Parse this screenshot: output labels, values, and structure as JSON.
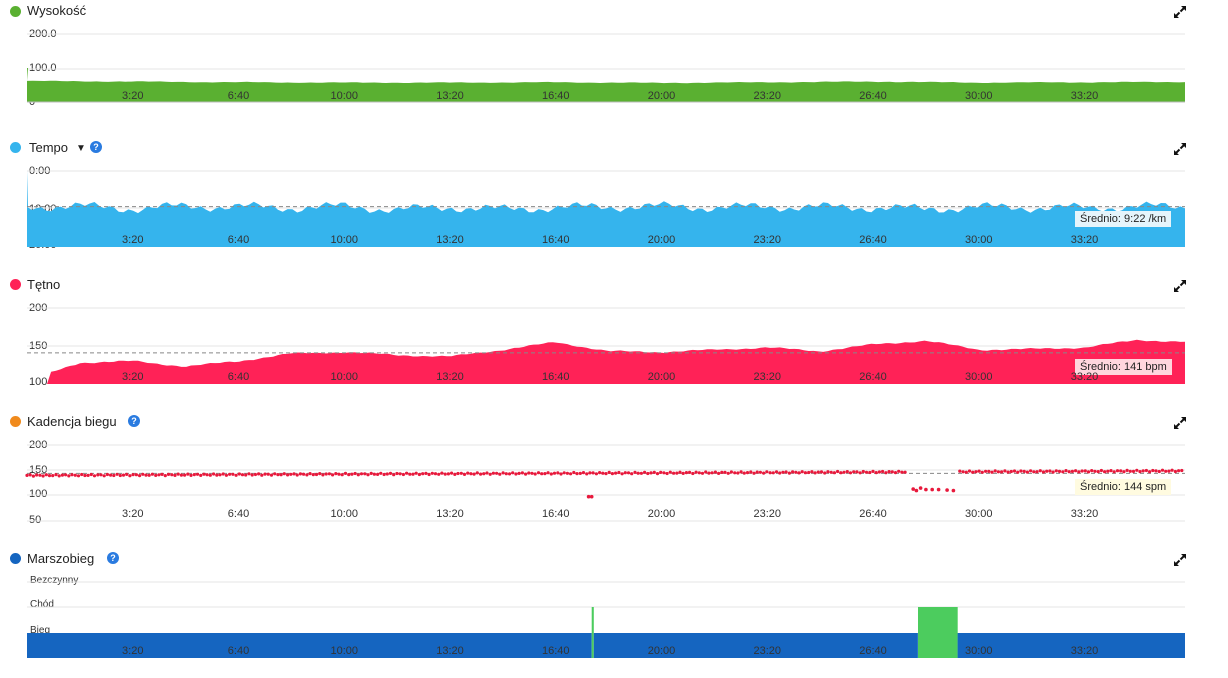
{
  "x_ticks": [
    "3:20",
    "6:40",
    "10:00",
    "13:20",
    "16:40",
    "20:00",
    "23:20",
    "26:40",
    "30:00",
    "33:20"
  ],
  "panels": {
    "wysokosc": {
      "title": "Wysokość",
      "color": "#5ab031",
      "y_ticks": [
        "200.0",
        "100.0",
        "0"
      ],
      "ylim": [
        0,
        200
      ],
      "icon": "expand-icon"
    },
    "tempo": {
      "title": "Tempo",
      "has_dropdown": true,
      "has_help": true,
      "color": "#35b4ed",
      "y_ticks": [
        "0:00",
        "10:00",
        "20:00"
      ],
      "average_label": "Średnio: 9:22 /km",
      "icon": "expand-icon"
    },
    "tetno": {
      "title": "Tętno",
      "color": "#ff2257",
      "y_ticks": [
        "200",
        "150",
        "100"
      ],
      "ylim": [
        100,
        200
      ],
      "average_label": "Średnio: 141 bpm",
      "icon": "expand-icon"
    },
    "kadencja": {
      "title": "Kadencja biegu",
      "has_help": true,
      "dot_color": "#f08a1c",
      "point_color": "#e8193c",
      "y_ticks": [
        "200",
        "150",
        "100",
        "50"
      ],
      "ylim": [
        50,
        200
      ],
      "average_label": "Średnio: 144 spm",
      "icon": "expand-icon"
    },
    "marszobieg": {
      "title": "Marszobieg",
      "has_help": true,
      "dot_color": "#1565c0",
      "run_color": "#1565c0",
      "walk_color": "#4ccc5e",
      "y_ticks": [
        "Bezczynny",
        "Chód",
        "Bieg"
      ],
      "icon": "expand-icon"
    }
  },
  "chart_data": [
    {
      "type": "area",
      "title": "Wysokość",
      "ylim": [
        0,
        200
      ],
      "x_unit": "seconds",
      "x": [
        0,
        200,
        400,
        600,
        800,
        1000,
        1200,
        1400,
        1600,
        1800,
        2000,
        2200,
        2400
      ],
      "values": [
        62,
        60,
        58,
        57,
        57,
        58,
        56,
        58,
        60,
        57,
        58,
        59,
        62
      ]
    },
    {
      "type": "area",
      "title": "Tempo",
      "ylim": [
        "0:00",
        "20:00"
      ],
      "average": "9:22",
      "x_unit": "seconds",
      "x": [
        0,
        100,
        200,
        300,
        400,
        500,
        600,
        700,
        800,
        900,
        1000,
        1100,
        1200,
        1300,
        1400,
        1500,
        1600,
        1700,
        1800,
        1900,
        2000,
        2100,
        2200
      ],
      "values_min_per_km": [
        9.4,
        9.3,
        9.9,
        9.3,
        9.4,
        9.7,
        9.3,
        10.2,
        9.5,
        10.1,
        9.6,
        9.4,
        9.3,
        9.6,
        9.4,
        9.5,
        9.6,
        10.0,
        9.5,
        9.6,
        9.7,
        9.3,
        9.5
      ]
    },
    {
      "type": "area",
      "title": "Tętno",
      "ylim": [
        100,
        200
      ],
      "average": 141,
      "x_unit": "seconds",
      "x": [
        0,
        100,
        200,
        300,
        400,
        500,
        600,
        700,
        800,
        900,
        1000,
        1100,
        1200,
        1300,
        1400,
        1500,
        1600,
        1700,
        1800,
        1900,
        2000,
        2100,
        2200
      ],
      "values": [
        104,
        128,
        130,
        123,
        130,
        140,
        142,
        138,
        136,
        145,
        155,
        143,
        142,
        145,
        148,
        143,
        152,
        157,
        145,
        146,
        148,
        158,
        155
      ]
    },
    {
      "type": "scatter",
      "title": "Kadencja biegu",
      "ylim": [
        50,
        200
      ],
      "average": 144,
      "x_unit": "seconds",
      "x": [
        0,
        200,
        400,
        600,
        800,
        1000,
        1060,
        1100,
        1300,
        1500,
        1600,
        1680,
        1700,
        1720,
        1800,
        1850,
        2000,
        2200
      ],
      "values": [
        140,
        142,
        145,
        145,
        145,
        145,
        98,
        146,
        146,
        147,
        148,
        112,
        110,
        108,
        146,
        147,
        148,
        150
      ]
    },
    {
      "type": "area",
      "title": "Marszobieg",
      "categories": [
        "Bezczynny",
        "Chód",
        "Bieg"
      ],
      "segments": [
        {
          "state": "Bieg",
          "from": 0,
          "to": 1068
        },
        {
          "state": "Chód",
          "from": 1068,
          "to": 1072
        },
        {
          "state": "Bieg",
          "from": 1072,
          "to": 1685
        },
        {
          "state": "Chód",
          "from": 1685,
          "to": 1760
        },
        {
          "state": "Bieg",
          "from": 1760,
          "to": 2190
        }
      ]
    }
  ]
}
